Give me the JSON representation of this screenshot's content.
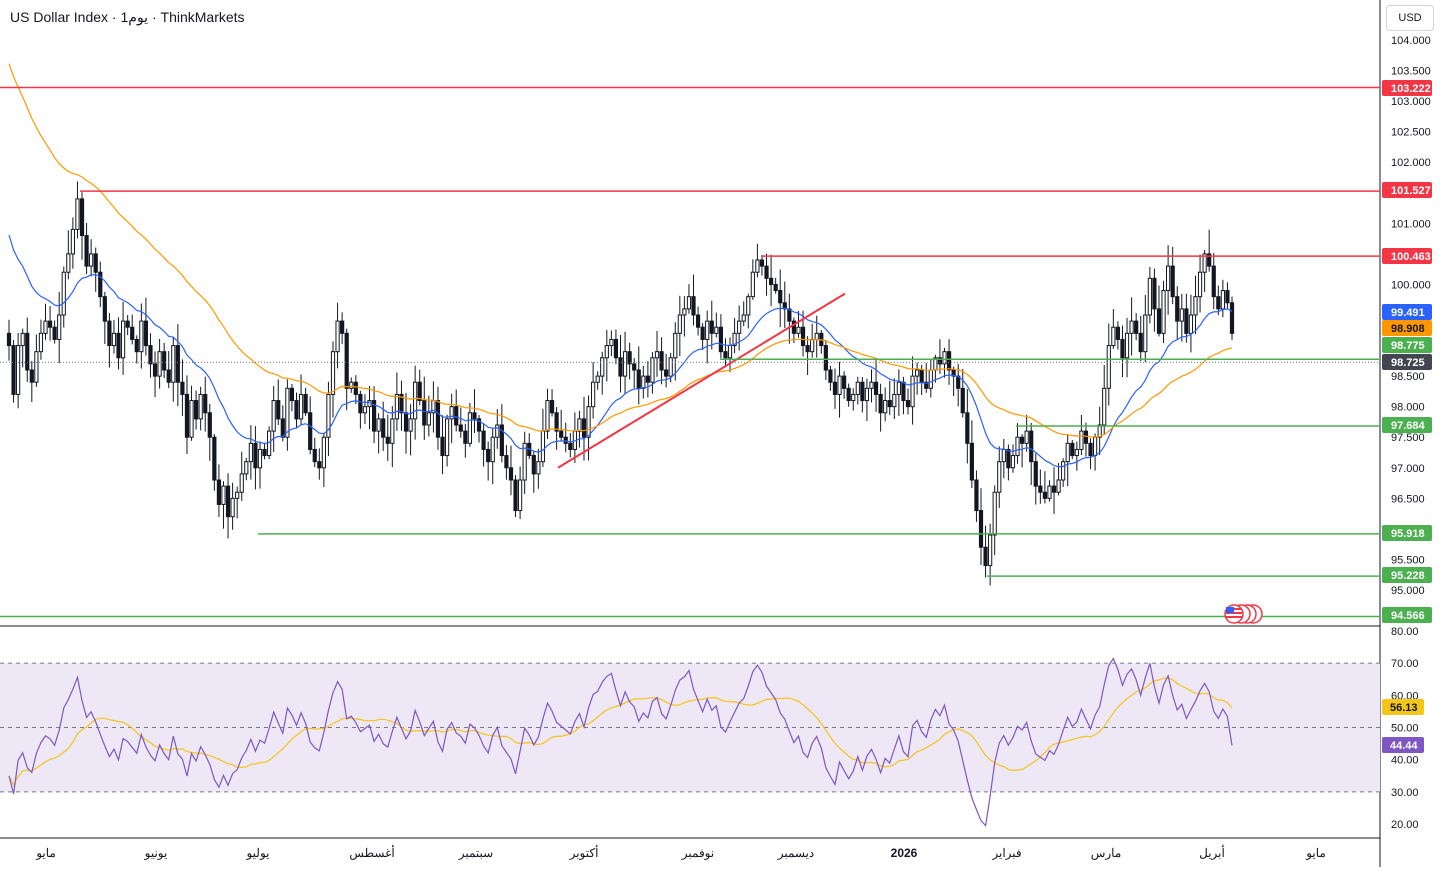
{
  "header": {
    "title": "US Dollar Index · 1يوم · ThinkMarkets",
    "currency": "USD"
  },
  "colors": {
    "up": "#131722",
    "down": "#131722",
    "resistance": "#f23645",
    "support": "#4caf50",
    "ema_fast": "#2962ff",
    "ema_slow": "#ff9800",
    "rsi": "#7e57c2",
    "rsi_ma": "#f5c518",
    "rsi_band": "#ede7f6",
    "trendline": "#f23645"
  },
  "chart_data": [
    {
      "type": "candlestick",
      "title": "US Dollar Index",
      "ylim": [
        94.5,
        104.5
      ],
      "yticks": [
        95.0,
        95.5,
        96.0,
        96.5,
        97.0,
        97.5,
        98.0,
        98.5,
        99.0,
        99.5,
        100.0,
        100.5,
        101.0,
        101.5,
        102.0,
        102.5,
        103.0,
        103.5,
        104.0
      ],
      "ytick_labels": [
        "95.000",
        "95.500",
        "96.000",
        "96.500",
        "97.000",
        "97.500",
        "98.000",
        "98.500",
        "99.000",
        "99.500",
        "100.000",
        "100.500",
        "101.000",
        "101.500",
        "102.000",
        "102.500",
        "103.000",
        "103.500",
        "104.000"
      ],
      "xlabels": [
        "مايو",
        "يونيو",
        "يوليو",
        "أغسطس",
        "سبتمبر",
        "أكتوبر",
        "نوفمبر",
        "ديسمبر",
        "2026",
        "فبراير",
        "مارس",
        "أبريل",
        "مايو"
      ],
      "closes": [
        99.0,
        98.2,
        99.0,
        99.2,
        98.6,
        98.4,
        98.9,
        99.2,
        99.4,
        99.3,
        99.1,
        99.5,
        100.2,
        100.5,
        100.9,
        101.4,
        100.8,
        100.3,
        100.5,
        100.2,
        99.8,
        99.4,
        99.0,
        99.2,
        98.8,
        99.4,
        99.3,
        99.1,
        98.9,
        99.4,
        99.0,
        98.7,
        98.5,
        98.9,
        98.6,
        98.4,
        99.0,
        98.4,
        98.2,
        97.5,
        98.1,
        97.8,
        98.2,
        97.9,
        97.5,
        96.8,
        96.4,
        96.7,
        96.2,
        96.5,
        96.6,
        96.9,
        97.1,
        97.4,
        97.0,
        97.3,
        97.2,
        97.6,
        98.1,
        97.8,
        97.5,
        98.3,
        98.1,
        97.8,
        98.2,
        97.9,
        97.3,
        97.1,
        97.0,
        97.5,
        98.2,
        98.9,
        99.4,
        99.2,
        98.3,
        98.4,
        98.2,
        97.9,
        98.0,
        98.1,
        97.6,
        97.8,
        97.5,
        97.4,
        97.8,
        98.2,
        97.9,
        97.6,
        97.8,
        98.4,
        98.1,
        97.7,
        97.9,
        98.1,
        97.5,
        97.2,
        97.8,
        98.0,
        97.7,
        97.6,
        97.4,
        97.9,
        97.8,
        97.6,
        97.3,
        97.1,
        97.5,
        97.7,
        97.2,
        97.0,
        96.8,
        96.3,
        96.8,
        97.4,
        97.2,
        96.9,
        97.1,
        97.6,
        98.1,
        97.9,
        97.6,
        97.5,
        97.4,
        97.3,
        97.6,
        97.8,
        97.5,
        98.0,
        98.4,
        98.5,
        98.8,
        99.0,
        99.1,
        98.8,
        98.5,
        98.9,
        98.7,
        98.6,
        98.3,
        98.5,
        98.4,
        98.8,
        98.9,
        98.6,
        98.5,
        98.8,
        99.2,
        99.5,
        99.6,
        99.8,
        99.5,
        99.3,
        99.1,
        99.4,
        99.2,
        99.3,
        98.9,
        98.8,
        99.0,
        99.2,
        99.4,
        99.5,
        99.8,
        100.2,
        100.4,
        100.3,
        100.1,
        100.0,
        99.9,
        99.7,
        99.6,
        99.4,
        99.2,
        99.3,
        99.0,
        98.9,
        99.1,
        99.2,
        99.0,
        98.6,
        98.4,
        98.2,
        98.5,
        98.3,
        98.1,
        98.2,
        98.4,
        98.1,
        98.3,
        98.4,
        98.2,
        97.9,
        98.1,
        98.0,
        98.2,
        98.4,
        98.1,
        98.0,
        98.5,
        98.6,
        98.4,
        98.3,
        98.6,
        98.8,
        98.7,
        98.9,
        98.6,
        98.5,
        98.3,
        97.9,
        97.4,
        96.8,
        96.3,
        95.7,
        95.4,
        95.9,
        96.6,
        97.1,
        97.3,
        97.0,
        97.2,
        97.5,
        97.4,
        97.6,
        97.1,
        96.7,
        96.6,
        96.5,
        96.7,
        96.6,
        96.8,
        97.1,
        97.4,
        97.2,
        97.3,
        97.6,
        97.4,
        97.2,
        97.5,
        97.7,
        98.3,
        99.0,
        99.3,
        99.1,
        98.8,
        99.2,
        99.4,
        99.2,
        98.9,
        99.5,
        100.1,
        99.6,
        99.2,
        99.9,
        100.3,
        99.8,
        99.4,
        99.6,
        99.2,
        99.5,
        99.8,
        100.2,
        100.5,
        100.3,
        99.8,
        99.6,
        99.9,
        99.7,
        99.2
      ],
      "last_price": 98.725,
      "price_labels": [
        "103.222",
        "101.527",
        "100.463",
        "99.491",
        "98.908",
        "98.775",
        "98.725",
        "97.684",
        "95.918",
        "95.228",
        "94.566"
      ],
      "levels": {
        "resistance": [
          103.222,
          101.527,
          100.463
        ],
        "support": [
          98.775,
          97.684,
          95.918,
          95.228,
          94.566
        ]
      },
      "indicators": {
        "ema_fast_last": 99.491,
        "ema_slow_last": 98.908
      }
    },
    {
      "type": "line",
      "title": "RSI",
      "ylim": [
        15,
        82
      ],
      "yticks": [
        20,
        30,
        40,
        50,
        60,
        70,
        80
      ],
      "ytick_labels": [
        "20.00",
        "30.00",
        "40.00",
        "50.00",
        "60.00",
        "70.00",
        "80.00"
      ],
      "band": [
        30,
        70
      ],
      "midline": 50,
      "rsi_last": 44.44,
      "rsi_ma_last": 56.13
    }
  ]
}
